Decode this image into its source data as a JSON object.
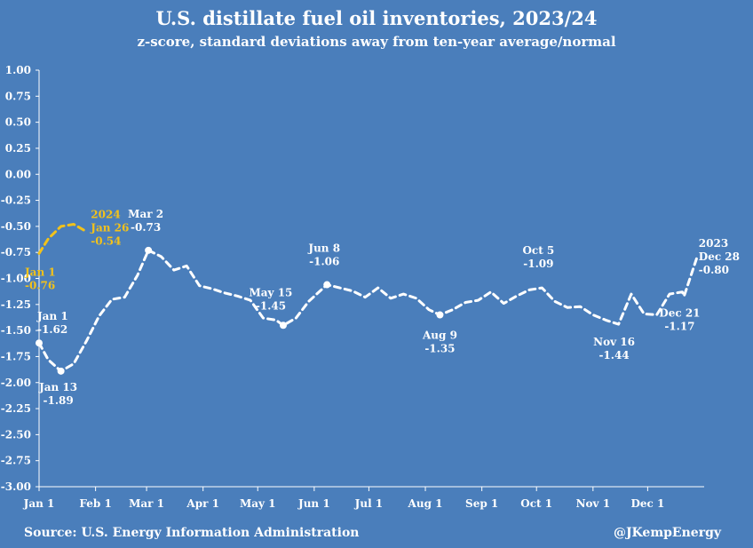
{
  "chart_data": {
    "type": "line",
    "title": "U.S. distillate fuel oil inventories, 2023/24",
    "subtitle": "z-score, standard deviations away from ten-year average/normal",
    "xlabel": "",
    "ylabel": "",
    "ylim": [
      -3.0,
      1.0
    ],
    "y_ticks": [
      "1.00",
      "0.75",
      "0.50",
      "0.25",
      "0.00",
      "-0.25",
      "-0.50",
      "-0.75",
      "-1.00",
      "-1.25",
      "-1.50",
      "-1.75",
      "-2.00",
      "-2.25",
      "-2.50",
      "-2.75",
      "-3.00"
    ],
    "x_tick_labels": [
      {
        "label": "Jan 1",
        "day": 0
      },
      {
        "label": "Feb 1",
        "day": 31
      },
      {
        "label": "Mar 1",
        "day": 59
      },
      {
        "label": "Apr 1",
        "day": 90
      },
      {
        "label": "May 1",
        "day": 120
      },
      {
        "label": "Jun 1",
        "day": 151
      },
      {
        "label": "Jul 1",
        "day": 181
      },
      {
        "label": "Aug 1",
        "day": 212
      },
      {
        "label": "Sep 1",
        "day": 243
      },
      {
        "label": "Oct 1",
        "day": 273
      },
      {
        "label": "Nov 1",
        "day": 304
      },
      {
        "label": "Dec 1",
        "day": 334
      }
    ],
    "grid": false,
    "series": [
      {
        "name": "2023",
        "color": "#ffffff",
        "style": "dashed",
        "points": [
          {
            "day": 0,
            "value": -1.62
          },
          {
            "day": 5,
            "value": -1.78
          },
          {
            "day": 12,
            "value": -1.89
          },
          {
            "day": 19,
            "value": -1.82
          },
          {
            "day": 26,
            "value": -1.6
          },
          {
            "day": 33,
            "value": -1.36
          },
          {
            "day": 40,
            "value": -1.2
          },
          {
            "day": 47,
            "value": -1.18
          },
          {
            "day": 54,
            "value": -0.97
          },
          {
            "day": 60,
            "value": -0.73
          },
          {
            "day": 67,
            "value": -0.79
          },
          {
            "day": 74,
            "value": -0.92
          },
          {
            "day": 81,
            "value": -0.88
          },
          {
            "day": 88,
            "value": -1.07
          },
          {
            "day": 95,
            "value": -1.1
          },
          {
            "day": 102,
            "value": -1.14
          },
          {
            "day": 109,
            "value": -1.17
          },
          {
            "day": 116,
            "value": -1.21
          },
          {
            "day": 123,
            "value": -1.38
          },
          {
            "day": 130,
            "value": -1.4
          },
          {
            "day": 134,
            "value": -1.45
          },
          {
            "day": 141,
            "value": -1.38
          },
          {
            "day": 148,
            "value": -1.22
          },
          {
            "day": 158,
            "value": -1.06
          },
          {
            "day": 165,
            "value": -1.09
          },
          {
            "day": 172,
            "value": -1.12
          },
          {
            "day": 179,
            "value": -1.18
          },
          {
            "day": 186,
            "value": -1.09
          },
          {
            "day": 193,
            "value": -1.19
          },
          {
            "day": 200,
            "value": -1.15
          },
          {
            "day": 207,
            "value": -1.19
          },
          {
            "day": 214,
            "value": -1.3
          },
          {
            "day": 220,
            "value": -1.35
          },
          {
            "day": 227,
            "value": -1.3
          },
          {
            "day": 234,
            "value": -1.23
          },
          {
            "day": 241,
            "value": -1.21
          },
          {
            "day": 248,
            "value": -1.13
          },
          {
            "day": 255,
            "value": -1.24
          },
          {
            "day": 262,
            "value": -1.17
          },
          {
            "day": 269,
            "value": -1.11
          },
          {
            "day": 276,
            "value": -1.09
          },
          {
            "day": 283,
            "value": -1.22
          },
          {
            "day": 290,
            "value": -1.28
          },
          {
            "day": 297,
            "value": -1.27
          },
          {
            "day": 304,
            "value": -1.35
          },
          {
            "day": 311,
            "value": -1.4
          },
          {
            "day": 318,
            "value": -1.44
          },
          {
            "day": 325,
            "value": -1.15
          },
          {
            "day": 332,
            "value": -1.34
          },
          {
            "day": 339,
            "value": -1.35
          },
          {
            "day": 346,
            "value": -1.15
          },
          {
            "day": 353,
            "value": -1.13
          },
          {
            "day": 354,
            "value": -1.17
          },
          {
            "day": 361,
            "value": -0.8
          }
        ]
      },
      {
        "name": "2024",
        "color": "#f2c21b",
        "style": "dashed",
        "points": [
          {
            "day": 0,
            "value": -0.76
          },
          {
            "day": 5,
            "value": -0.62
          },
          {
            "day": 12,
            "value": -0.5
          },
          {
            "day": 19,
            "value": -0.48
          },
          {
            "day": 25,
            "value": -0.54
          }
        ]
      }
    ],
    "annotations": [
      {
        "id": "jan1-2023",
        "lines": [
          "Jan 1",
          "-1.62"
        ],
        "day": 0,
        "value": -1.62,
        "series": "2023",
        "marker": true
      },
      {
        "id": "jan13",
        "lines": [
          "Jan 13",
          "-1.89"
        ],
        "day": 12,
        "value": -1.89,
        "series": "2023",
        "marker": true
      },
      {
        "id": "mar2",
        "lines": [
          "Mar 2",
          "-0.73"
        ],
        "day": 60,
        "value": -0.73,
        "series": "2023",
        "marker": true
      },
      {
        "id": "may15",
        "lines": [
          "May 15",
          "-1.45"
        ],
        "day": 134,
        "value": -1.45,
        "series": "2023",
        "marker": true
      },
      {
        "id": "jun8",
        "lines": [
          "Jun 8",
          "-1.06"
        ],
        "day": 158,
        "value": -1.06,
        "series": "2023",
        "marker": true
      },
      {
        "id": "aug9",
        "lines": [
          "Aug 9",
          "-1.35"
        ],
        "day": 220,
        "value": -1.35,
        "series": "2023",
        "marker": true
      },
      {
        "id": "oct5",
        "lines": [
          "Oct 5",
          "-1.09"
        ],
        "day": 276,
        "value": -1.09,
        "series": "2023",
        "marker": false
      },
      {
        "id": "nov16",
        "lines": [
          "Nov 16",
          "-1.44"
        ],
        "day": 318,
        "value": -1.44,
        "series": "2023",
        "marker": false
      },
      {
        "id": "dec21",
        "lines": [
          "Dec 21",
          "-1.17"
        ],
        "day": 354,
        "value": -1.17,
        "series": "2023",
        "marker": false
      },
      {
        "id": "dec28",
        "lines": [
          "2023",
          "Dec 28",
          "-0.80"
        ],
        "day": 361,
        "value": -0.8,
        "series": "2023",
        "marker": false
      },
      {
        "id": "jan1-2024",
        "lines": [
          "Jan 1",
          "-0.76"
        ],
        "day": 0,
        "value": -0.76,
        "series": "2024",
        "marker": false
      },
      {
        "id": "jan26",
        "lines": [
          "2024",
          "Jan 26",
          "-0.54"
        ],
        "day": 25,
        "value": -0.54,
        "series": "2024",
        "marker": false
      }
    ]
  },
  "footer": {
    "source": "Source: U.S. Energy Information Administration",
    "handle": "@JKempEnergy"
  }
}
